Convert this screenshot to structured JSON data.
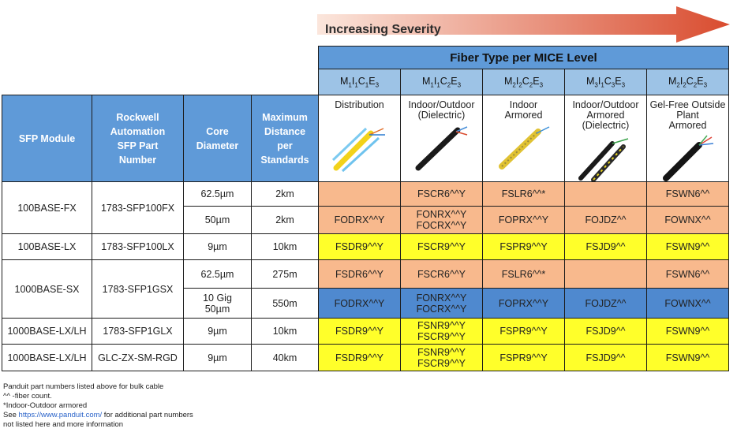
{
  "severity": {
    "label": "Increasing Severity"
  },
  "header": {
    "fiber_type_title": "Fiber Type per MICE Level"
  },
  "left_headers": {
    "sfp_module": "SFP Module",
    "rockwell_part": "Rockwell Automation SFP Part Number",
    "core_diameter": "Core Diameter",
    "max_distance": "Maximum Distance per Standards"
  },
  "mice_columns": [
    {
      "m": "1",
      "i": "1",
      "c": "1",
      "e": "3",
      "desc1": "Distribution",
      "desc2": ""
    },
    {
      "m": "1",
      "i": "1",
      "c": "2",
      "e": "3",
      "desc1": "Indoor/Outdoor",
      "desc2": "(Dielectric)"
    },
    {
      "m": "2",
      "i": "2",
      "c": "2",
      "e": "3",
      "desc1": "Indoor",
      "desc2": "Armored"
    },
    {
      "m": "3",
      "i": "1",
      "c": "3",
      "e": "3",
      "desc1": "Indoor/Outdoor",
      "desc2": "Armored (Dielectric)"
    },
    {
      "m": "2",
      "i": "2",
      "c": "2",
      "e": "3",
      "desc1": "Gel-Free Outside Plant",
      "desc2": "Armored"
    }
  ],
  "rows": [
    {
      "module": "100BASE-FX",
      "part": "1783-SFP100FX",
      "core": "62.5µm",
      "distance": "2km",
      "c1": "",
      "c2": "FSCR6^^Y",
      "c3": "FSLR6^^*",
      "c4": "",
      "c5": "FSWN6^^",
      "core2": "50µm",
      "distance2": "2km",
      "d1": "FODRX^^Y",
      "d2a": "FONRX^^Y",
      "d2b": "FOCRX^^Y",
      "d3": "FOPRX^^Y",
      "d4": "FOJDZ^^",
      "d5": "FOWNX^^"
    },
    {
      "module": "100BASE-LX",
      "part": "1783-SFP100LX",
      "core": "9µm",
      "distance": "10km",
      "c1": "FSDR9^^Y",
      "c2": "FSCR9^^Y",
      "c3": "FSPR9^^Y",
      "c4": "FSJD9^^",
      "c5": "FSWN9^^"
    },
    {
      "module": "1000BASE-SX",
      "part": "1783-SFP1GSX",
      "core": "62.5µm",
      "distance": "275m",
      "c1": "FSDR6^^Y",
      "c2": "FSCR6^^Y",
      "c3": "FSLR6^^*",
      "c4": "",
      "c5": "FSWN6^^",
      "core2a": "10 Gig",
      "core2b": "50µm",
      "distance2": "550m",
      "d1": "FODRX^^Y",
      "d2a": "FONRX^^Y",
      "d2b": "FOCRX^^Y",
      "d3": "FOPRX^^Y",
      "d4": "FOJDZ^^",
      "d5": "FOWNX^^"
    },
    {
      "module": "1000BASE-LX/LH",
      "part": "1783-SFP1GLX",
      "core": "9µm",
      "distance": "10km",
      "c1": "FSDR9^^Y",
      "c2a": "FSNR9^^Y",
      "c2b": "FSCR9^^Y",
      "c3": "FSPR9^^Y",
      "c4": "FSJD9^^",
      "c5": "FSWN9^^"
    },
    {
      "module": "1000BASE-LX/LH",
      "part": "GLC-ZX-SM-RGD",
      "core": "9µm",
      "distance": "40km",
      "c1": "FSDR9^^Y",
      "c2a": "FSNR9^^Y",
      "c2b": "FSCR9^^Y",
      "c3": "FSPR9^^Y",
      "c4": "FSJD9^^",
      "c5": "FSWN9^^"
    }
  ],
  "notes": {
    "line1": "Panduit part numbers listed above for bulk cable",
    "line2": "^^ -fiber count.",
    "line3": "*Indoor-Outdoor armored",
    "line4_pre": "See ",
    "line4_link": "https://www.panduit.com/",
    "line4_post": " for additional part numbers",
    "line5": "not listed here and more information"
  },
  "colors": {
    "header_blue": "#5f9ad8",
    "salmon": "#f8b98d",
    "blue": "#4f89cf",
    "yellow": "#ffff2a"
  }
}
